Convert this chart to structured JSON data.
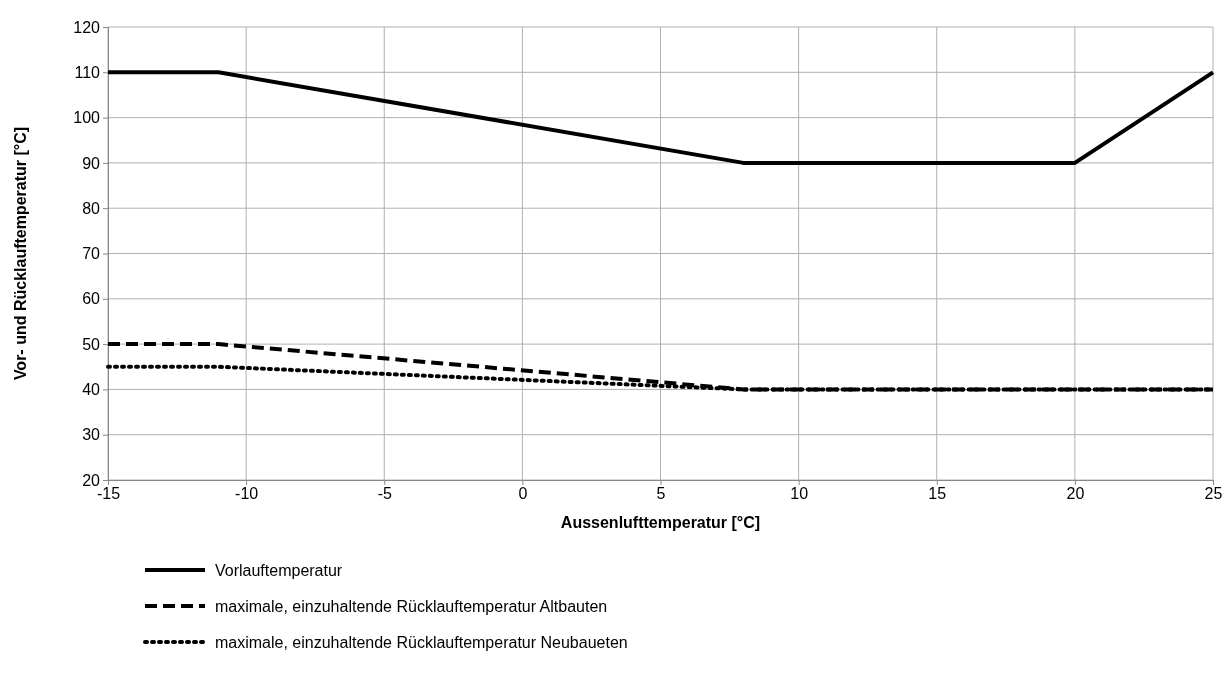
{
  "chart_data": {
    "type": "line",
    "xlabel": "Aussenlufttemperatur [°C]",
    "ylabel": "Vor- und Rücklauftemperatur [°C]",
    "xlim": [
      -15,
      25
    ],
    "xticks": [
      -15,
      -10,
      -5,
      0,
      5,
      10,
      15,
      20,
      25
    ],
    "ylim": [
      20,
      120
    ],
    "yticks": [
      20,
      30,
      40,
      50,
      60,
      70,
      80,
      90,
      100,
      110,
      120
    ],
    "grid": true,
    "legend": "bottom",
    "series": [
      {
        "name": "Vorlauftemperatur",
        "color": "#000000",
        "line_style": "solid",
        "x": [
          -15,
          -11,
          8,
          20,
          25
        ],
        "values": [
          110,
          110,
          90,
          90,
          110
        ]
      },
      {
        "name": "maximale, einzuhaltende Rücklauftemperatur Altbauten",
        "color": "#000000",
        "line_style": "dashed",
        "x": [
          -15,
          -11,
          8,
          20,
          25
        ],
        "values": [
          50,
          50,
          40,
          40,
          40
        ]
      },
      {
        "name": "maximale, einzuhaltende Rücklauftemperatur Neubaueten",
        "color": "#000000",
        "line_style": "dotted",
        "x": [
          -15,
          -11,
          8,
          20,
          25
        ],
        "values": [
          45,
          45,
          40,
          40,
          40
        ]
      }
    ]
  }
}
